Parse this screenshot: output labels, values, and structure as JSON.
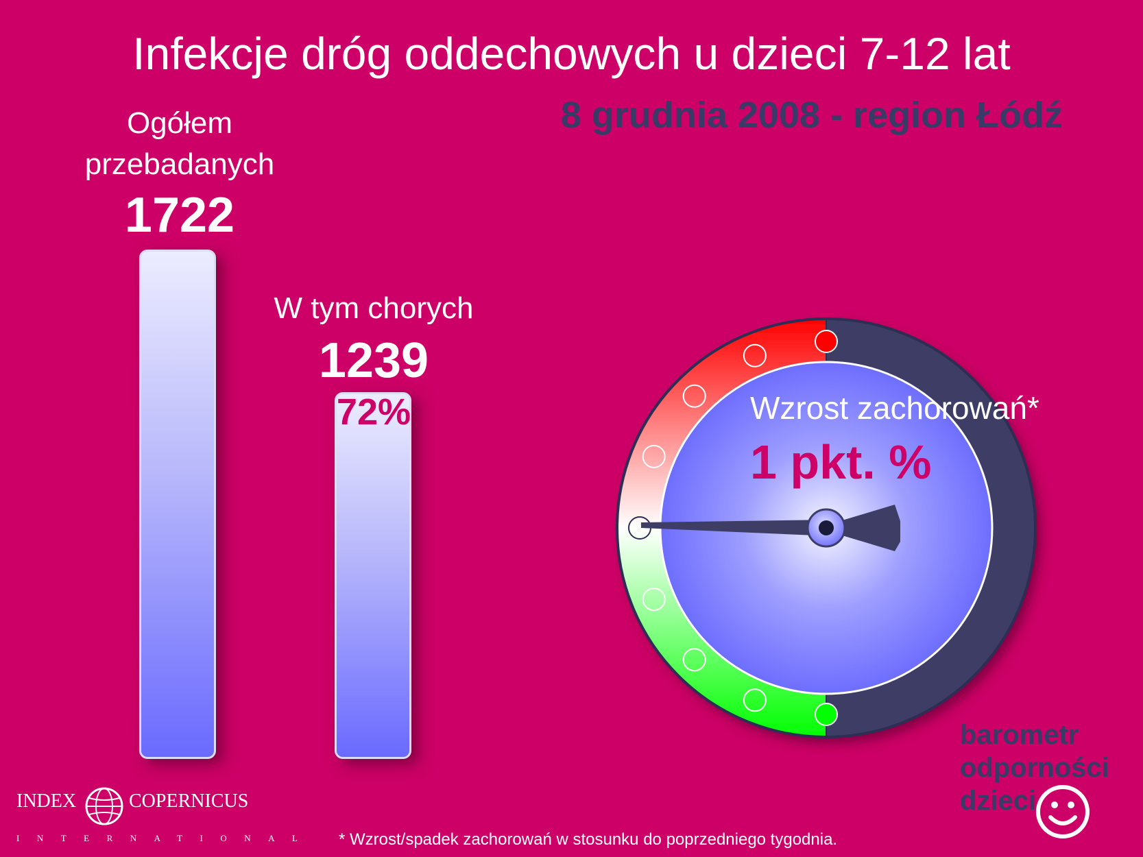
{
  "title": "Infekcje dróg oddechowych u dzieci 7-12 lat",
  "subtitle": "8 grudnia 2008 - region Łódź",
  "chart_data": [
    {
      "type": "bar",
      "categories": [
        "Ogółem przebadanych",
        "W tym chorych"
      ],
      "values": [
        1722,
        1239
      ],
      "category_labels": [
        [
          "Ogółem",
          "przebadanych"
        ],
        [
          "W tym chorych"
        ]
      ],
      "value_labels": [
        "1722",
        "1239"
      ],
      "annotations": [
        "72%"
      ],
      "bar_color_top": "#ececff",
      "bar_color_bottom": "#6a6aff"
    },
    {
      "type": "gauge",
      "label": "Wzrost zachorowań*",
      "value_label": "1 pkt. %",
      "value": 1,
      "needle_direction": "left",
      "scale_colors": {
        "top": "#ff0000",
        "middle": "#ffffff",
        "bottom": "#00ff00"
      },
      "dial_color": "#6a6aff",
      "right_half_color": "#3d3d66"
    }
  ],
  "brand": {
    "lines": [
      "barometr",
      "odporności",
      "dzieci"
    ]
  },
  "footnote": "* Wzrost/spadek zachorowań w stosunku do poprzedniego tygodnia.",
  "logo": {
    "left": "INDEX",
    "right": "COPERNICUS",
    "sub": "INTERNATIONAL"
  },
  "colors": {
    "background": "#cc0066",
    "accent_dark": "#3a3a66",
    "accent_pink": "#cc0066"
  }
}
